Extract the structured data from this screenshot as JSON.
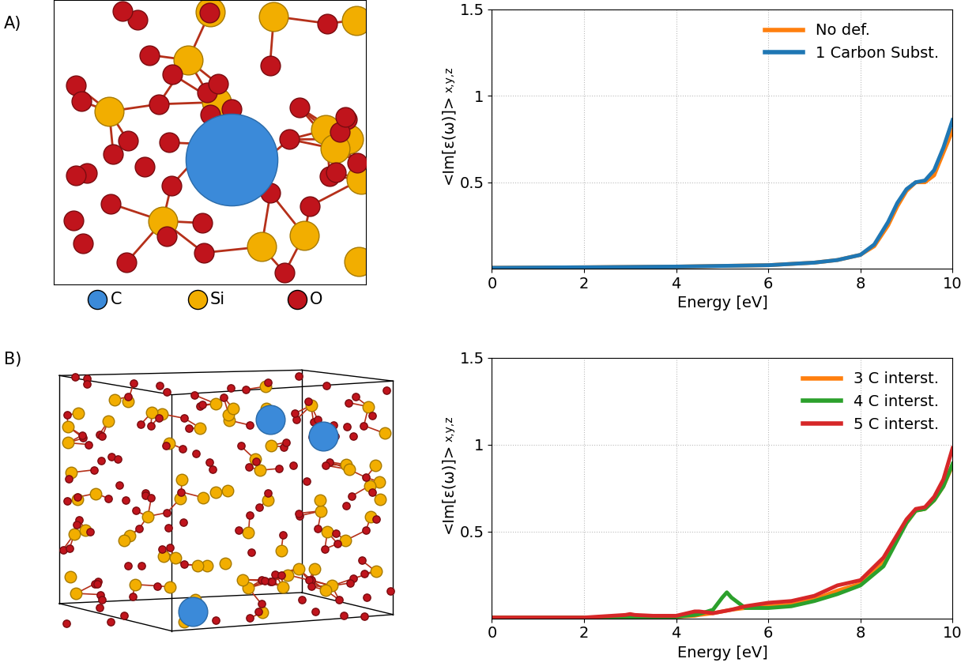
{
  "panel_labels": [
    "A)",
    "B)"
  ],
  "atom_legend": [
    {
      "label": "C",
      "color": "#3b8ad9"
    },
    {
      "label": "Si",
      "color": "#f2ae00"
    },
    {
      "label": "O",
      "color": "#c0141c"
    }
  ],
  "chart_data": [
    {
      "type": "line",
      "x_label": "Energy [eV]",
      "y_label": "<Im[ε(ω)]>",
      "y_label_subscript": "x,y,z",
      "xlim": [
        0,
        10
      ],
      "ylim": [
        0,
        1.5
      ],
      "xticks": [
        0,
        2,
        4,
        6,
        8,
        10
      ],
      "yticks": [
        0.5,
        1,
        1.5
      ],
      "grid": true,
      "legend": "upper right",
      "x": [
        0,
        2,
        4,
        6,
        7,
        7.5,
        8,
        8.3,
        8.6,
        8.8,
        9.0,
        9.2,
        9.4,
        9.6,
        9.8,
        10
      ],
      "series": [
        {
          "name": "No def.",
          "color": "#ff7f0e",
          "values": [
            0.005,
            0.008,
            0.012,
            0.02,
            0.035,
            0.05,
            0.08,
            0.13,
            0.25,
            0.36,
            0.45,
            0.5,
            0.5,
            0.54,
            0.67,
            0.8
          ]
        },
        {
          "name": "1 Carbon Subst.",
          "color": "#1f77b4",
          "values": [
            0.005,
            0.008,
            0.012,
            0.02,
            0.035,
            0.05,
            0.08,
            0.14,
            0.27,
            0.38,
            0.46,
            0.5,
            0.51,
            0.57,
            0.7,
            0.86
          ]
        }
      ]
    },
    {
      "type": "line",
      "x_label": "Energy [eV]",
      "y_label": "<Im[ε(ω)]>",
      "y_label_subscript": "x,y,z",
      "xlim": [
        0,
        10
      ],
      "ylim": [
        0,
        1.5
      ],
      "xticks": [
        0,
        2,
        4,
        6,
        8,
        10
      ],
      "yticks": [
        0.5,
        1,
        1.5
      ],
      "grid": true,
      "legend": "upper right",
      "x": [
        0,
        1,
        2,
        2.9,
        3,
        3.1,
        3.5,
        4,
        4.4,
        4.5,
        4.8,
        5,
        5.1,
        5.2,
        5.5,
        6,
        6.5,
        7,
        7.5,
        8,
        8.5,
        9,
        9.2,
        9.4,
        9.6,
        9.8,
        10
      ],
      "series": [
        {
          "name": "3 C interst.",
          "color": "#ff7f0e",
          "values": [
            0.005,
            0.005,
            0.005,
            0.008,
            0.01,
            0.01,
            0.01,
            0.01,
            0.015,
            0.02,
            0.03,
            0.04,
            0.045,
            0.05,
            0.06,
            0.07,
            0.08,
            0.11,
            0.16,
            0.2,
            0.33,
            0.55,
            0.62,
            0.63,
            0.68,
            0.76,
            0.88
          ]
        },
        {
          "name": "4 C interst.",
          "color": "#2ca02c",
          "values": [
            0.005,
            0.005,
            0.005,
            0.005,
            0.005,
            0.005,
            0.005,
            0.01,
            0.02,
            0.025,
            0.05,
            0.12,
            0.15,
            0.12,
            0.06,
            0.06,
            0.07,
            0.1,
            0.14,
            0.19,
            0.3,
            0.55,
            0.62,
            0.63,
            0.68,
            0.76,
            0.89
          ]
        },
        {
          "name": "5 C interst.",
          "color": "#d62728",
          "values": [
            0.005,
            0.005,
            0.005,
            0.02,
            0.025,
            0.02,
            0.015,
            0.015,
            0.04,
            0.04,
            0.03,
            0.04,
            0.045,
            0.05,
            0.07,
            0.09,
            0.1,
            0.13,
            0.19,
            0.22,
            0.35,
            0.57,
            0.63,
            0.64,
            0.7,
            0.8,
            0.98
          ]
        }
      ]
    }
  ]
}
